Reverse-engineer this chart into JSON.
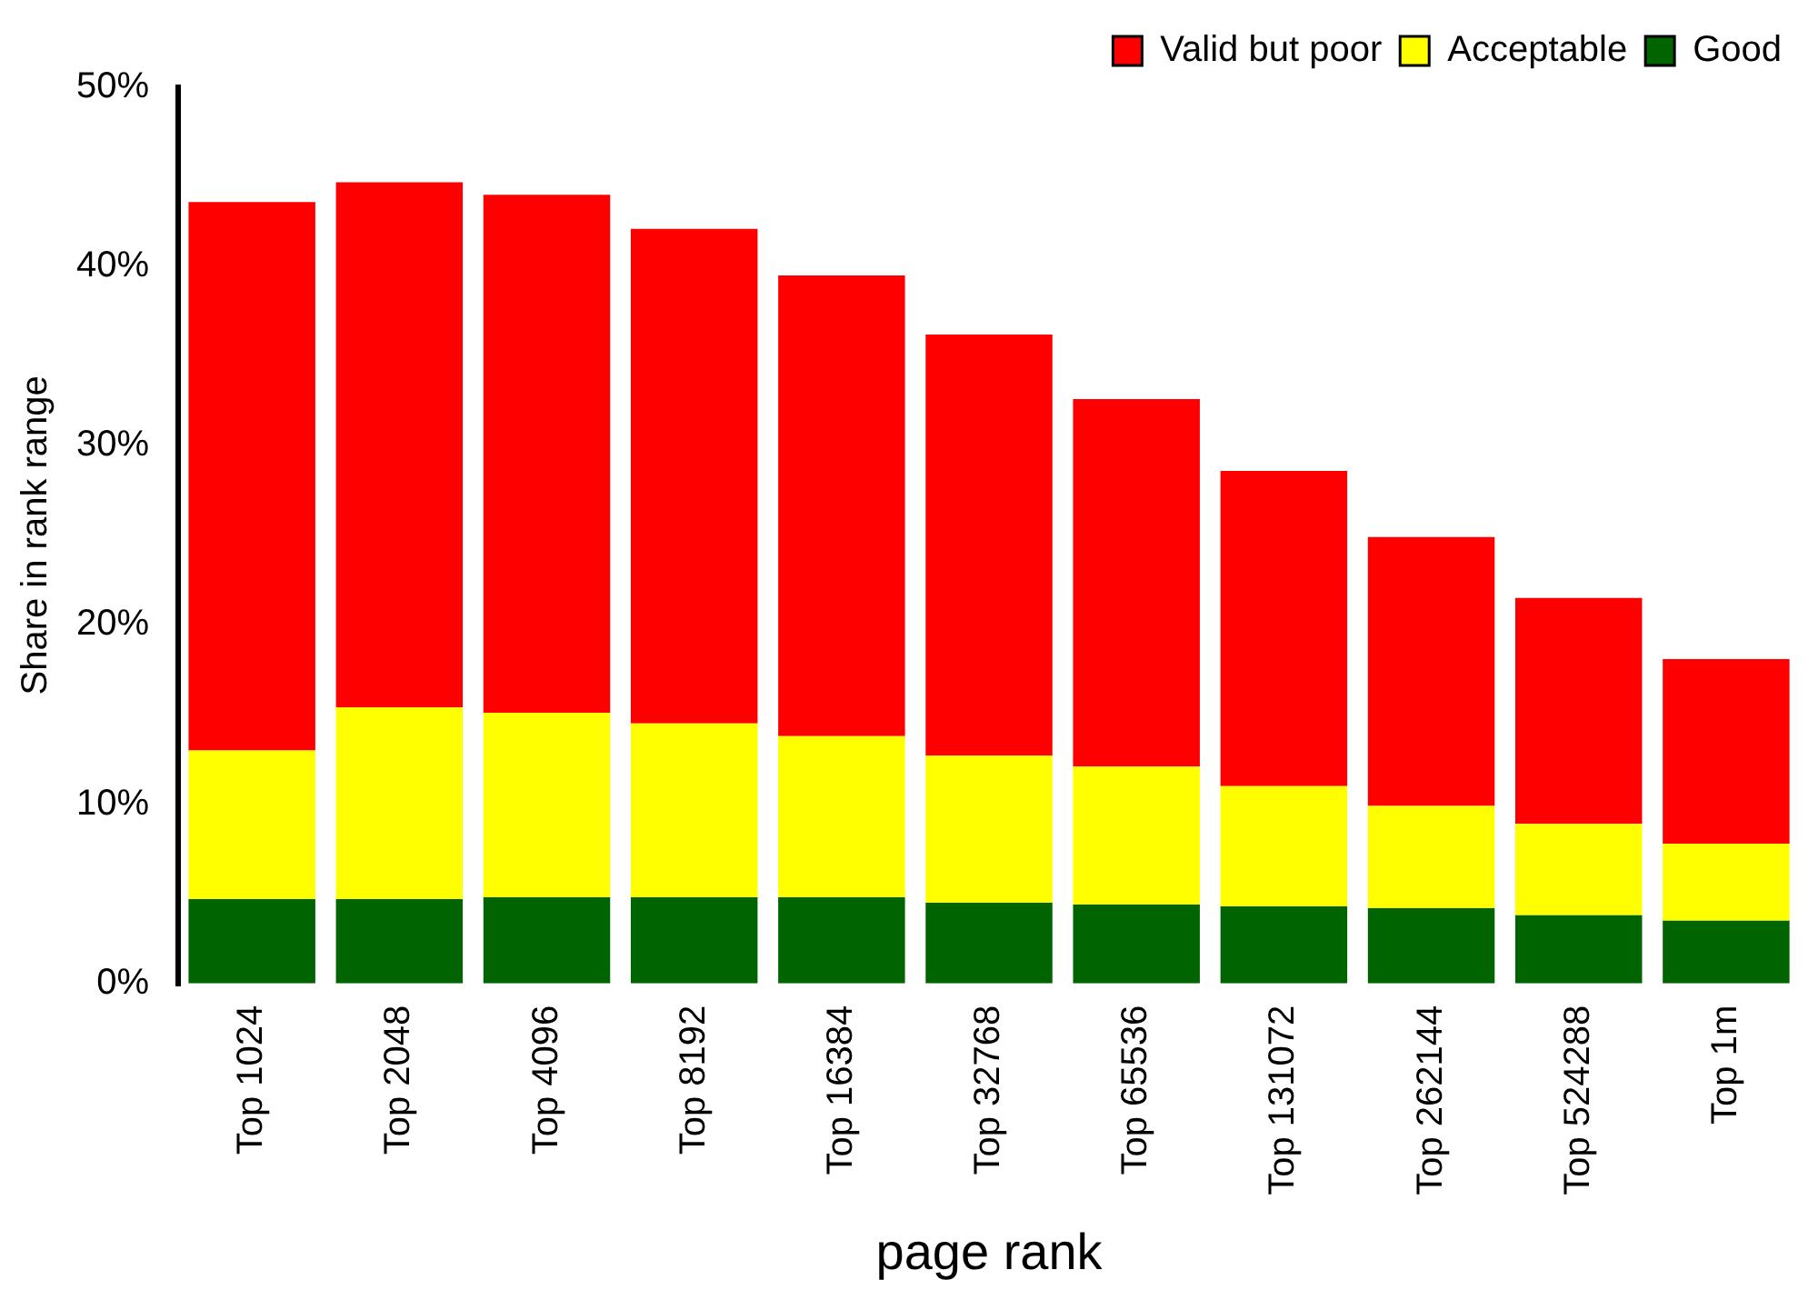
{
  "chart_data": {
    "type": "bar",
    "stacked": true,
    "xlabel": "page rank",
    "ylabel": "Share in rank range",
    "categories": [
      "Top 1024",
      "Top 2048",
      "Top 4096",
      "Top 8192",
      "Top 16384",
      "Top 32768",
      "Top 65536",
      "Top 131072",
      "Top 262144",
      "Top 524288",
      "Top 1m"
    ],
    "series": [
      {
        "name": "Good",
        "color": "#006400",
        "values": [
          4.7,
          4.7,
          4.8,
          4.8,
          4.8,
          4.5,
          4.4,
          4.3,
          4.2,
          3.8,
          3.5
        ]
      },
      {
        "name": "Acceptable",
        "color": "#ffff00",
        "values": [
          8.3,
          10.7,
          10.3,
          9.7,
          9.0,
          8.2,
          7.7,
          6.7,
          5.7,
          5.1,
          4.3
        ]
      },
      {
        "name": "Valid but poor",
        "color": "#ff0000",
        "values": [
          30.6,
          29.3,
          28.9,
          27.6,
          25.7,
          23.5,
          20.5,
          17.6,
          15.0,
          12.6,
          10.3
        ]
      }
    ],
    "ylim": [
      0,
      50
    ],
    "yticks": [
      {
        "value": 0,
        "label": "0%"
      },
      {
        "value": 10,
        "label": "10%"
      },
      {
        "value": 20,
        "label": "20%"
      },
      {
        "value": 30,
        "label": "30%"
      },
      {
        "value": 40,
        "label": "40%"
      },
      {
        "value": 50,
        "label": "50%"
      }
    ],
    "grid": false,
    "legend": "top right"
  }
}
